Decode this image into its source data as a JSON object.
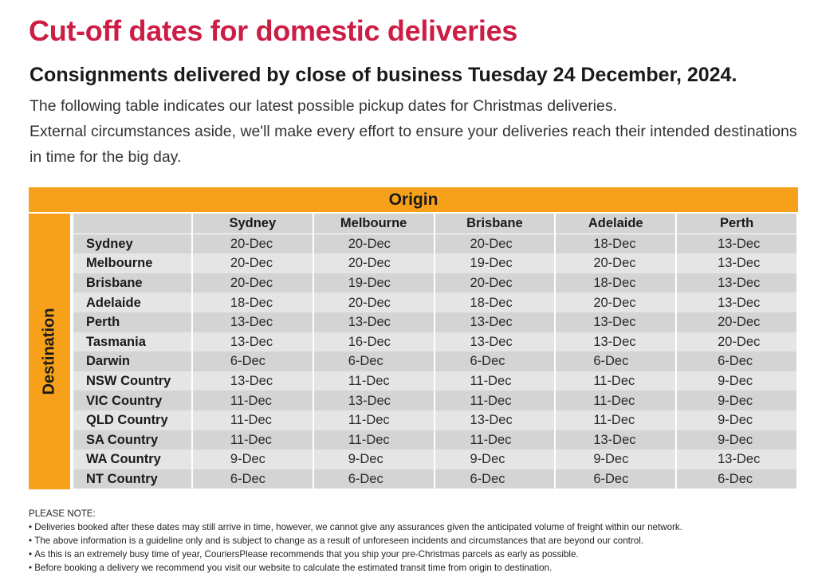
{
  "title": "Cut-off dates for domestic deliveries",
  "subtitle": "Consignments delivered by close of business Tuesday 24 December, 2024.",
  "intro": [
    "The following table indicates our latest possible pickup dates for Christmas deliveries.",
    "External circumstances aside, we'll make every effort to ensure your deliveries reach their intended destinations in time for the big day."
  ],
  "table": {
    "origin_label": "Origin",
    "destination_label": "Destination",
    "columns": [
      "Sydney",
      "Melbourne",
      "Brisbane",
      "Adelaide",
      "Perth"
    ],
    "rows": [
      {
        "dest": "Sydney",
        "dates": [
          "20-Dec",
          "20-Dec",
          "20-Dec",
          "18-Dec",
          "13-Dec"
        ]
      },
      {
        "dest": "Melbourne",
        "dates": [
          "20-Dec",
          "20-Dec",
          "19-Dec",
          "20-Dec",
          "13-Dec"
        ]
      },
      {
        "dest": "Brisbane",
        "dates": [
          "20-Dec",
          "19-Dec",
          "20-Dec",
          "18-Dec",
          "13-Dec"
        ]
      },
      {
        "dest": "Adelaide",
        "dates": [
          "18-Dec",
          "20-Dec",
          "18-Dec",
          "20-Dec",
          "13-Dec"
        ]
      },
      {
        "dest": "Perth",
        "dates": [
          "13-Dec",
          "13-Dec",
          "13-Dec",
          "13-Dec",
          "20-Dec"
        ]
      },
      {
        "dest": "Tasmania",
        "dates": [
          "13-Dec",
          "16-Dec",
          "13-Dec",
          "13-Dec",
          "20-Dec"
        ]
      },
      {
        "dest": "Darwin",
        "dates": [
          "6-Dec",
          "6-Dec",
          "6-Dec",
          "6-Dec",
          "6-Dec"
        ]
      },
      {
        "dest": "NSW Country",
        "dates": [
          "13-Dec",
          "11-Dec",
          "11-Dec",
          "11-Dec",
          "9-Dec"
        ]
      },
      {
        "dest": "VIC Country",
        "dates": [
          "11-Dec",
          "13-Dec",
          "11-Dec",
          "11-Dec",
          "9-Dec"
        ]
      },
      {
        "dest": "QLD Country",
        "dates": [
          "11-Dec",
          "11-Dec",
          "13-Dec",
          "11-Dec",
          "9-Dec"
        ]
      },
      {
        "dest": "SA Country",
        "dates": [
          "11-Dec",
          "11-Dec",
          "11-Dec",
          "13-Dec",
          "9-Dec"
        ]
      },
      {
        "dest": "WA Country",
        "dates": [
          "9-Dec",
          "9-Dec",
          "9-Dec",
          "9-Dec",
          "13-Dec"
        ]
      },
      {
        "dest": "NT Country",
        "dates": [
          "6-Dec",
          "6-Dec",
          "6-Dec",
          "6-Dec",
          "6-Dec"
        ]
      }
    ]
  },
  "notes": {
    "heading": "PLEASE NOTE:",
    "items": [
      "Deliveries booked after these dates may still arrive in time, however, we cannot give any assurances given the anticipated volume of freight within our network.",
      "The above information is a guideline only and is subject to change as a result of unforeseen incidents and circumstances that are beyond our control.",
      "As this is an extremely busy time of year, CouriersPlease recommends that you ship your pre-Christmas parcels as early as possible.",
      "Before booking a delivery we recommend you visit our website to calculate the estimated transit time from origin to destination."
    ]
  },
  "colors": {
    "title": "#cc1d45",
    "accent": "#f7a11a",
    "row_dark": "#d4d4d4",
    "row_light": "#e5e5e5"
  }
}
